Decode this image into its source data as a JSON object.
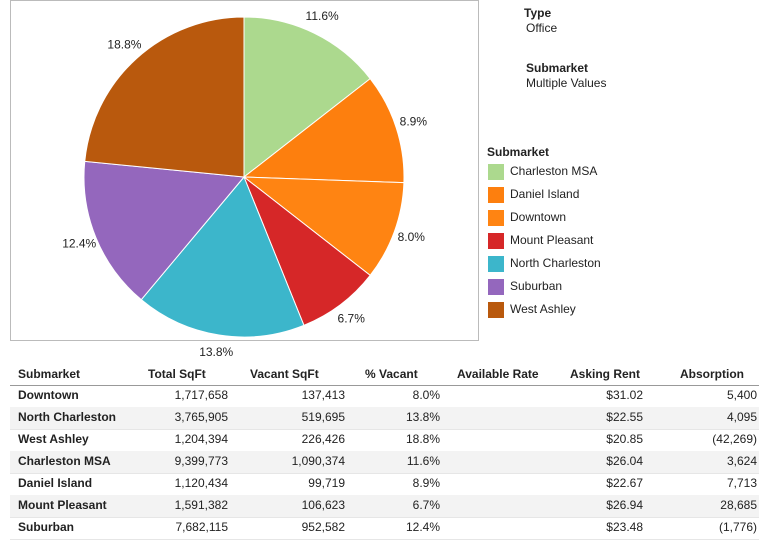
{
  "filters": [
    {
      "label": "Type",
      "value": "Office"
    },
    {
      "label": "Submarket",
      "value": "Multiple Values"
    }
  ],
  "chart_data": {
    "type": "pie",
    "legend_title": "Submarket",
    "categories": [
      "Charleston MSA",
      "Daniel Island",
      "Downtown",
      "Mount Pleasant",
      "North Charleston",
      "Suburban",
      "West Ashley"
    ],
    "values": [
      11.6,
      8.9,
      8.0,
      6.7,
      13.8,
      12.4,
      18.8
    ],
    "value_labels": [
      "11.6%",
      "8.9%",
      "8.0%",
      "6.7%",
      "13.8%",
      "12.4%",
      "18.8%"
    ],
    "colors": [
      "#acd98e",
      "#fd7f0e",
      "#ff8412",
      "#d62728",
      "#3cb6cb",
      "#9467bd",
      "#b9590d"
    ]
  },
  "table": {
    "columns": [
      "Submarket",
      "Total SqFt",
      "Vacant SqFt",
      "% Vacant",
      "Available Rate",
      "Asking Rent",
      "Absorption"
    ],
    "rows": [
      [
        "Downtown",
        "1,717,658",
        "137,413",
        "8.0%",
        null,
        "$31.02",
        "5,400"
      ],
      [
        "North Charleston",
        "3,765,905",
        "519,695",
        "13.8%",
        null,
        "$22.55",
        "4,095"
      ],
      [
        "West Ashley",
        "1,204,394",
        "226,426",
        "18.8%",
        null,
        "$20.85",
        "(42,269)"
      ],
      [
        "Charleston MSA",
        "9,399,773",
        "1,090,374",
        "11.6%",
        null,
        "$26.04",
        "3,624"
      ],
      [
        "Daniel Island",
        "1,120,434",
        "99,719",
        "8.9%",
        null,
        "$22.67",
        "7,713"
      ],
      [
        "Mount Pleasant",
        "1,591,382",
        "106,623",
        "6.7%",
        null,
        "$26.94",
        "28,685"
      ],
      [
        "Suburban",
        "7,682,115",
        "952,582",
        "12.4%",
        null,
        "$23.48",
        "(1,776)"
      ]
    ]
  }
}
